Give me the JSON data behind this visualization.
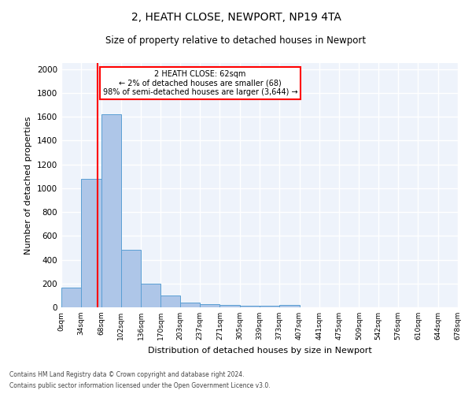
{
  "title": "2, HEATH CLOSE, NEWPORT, NP19 4TA",
  "subtitle": "Size of property relative to detached houses in Newport",
  "xlabel": "Distribution of detached houses by size in Newport",
  "ylabel": "Number of detached properties",
  "bar_color": "#aec6e8",
  "bar_edge_color": "#5a9fd4",
  "bg_color": "#eef3fb",
  "grid_color": "#ffffff",
  "red_line_x": 62,
  "annotation_box_text": "2 HEATH CLOSE: 62sqm\n← 2% of detached houses are smaller (68)\n98% of semi-detached houses are larger (3,644) →",
  "bins": [
    0,
    34,
    68,
    102,
    136,
    170,
    203,
    237,
    271,
    305,
    339,
    373,
    407,
    441,
    475,
    509,
    542,
    576,
    610,
    644,
    678
  ],
  "counts": [
    165,
    1080,
    1620,
    480,
    200,
    100,
    40,
    28,
    18,
    15,
    12,
    18,
    0,
    0,
    0,
    0,
    0,
    0,
    0,
    0
  ],
  "tick_labels": [
    "0sqm",
    "34sqm",
    "68sqm",
    "102sqm",
    "136sqm",
    "170sqm",
    "203sqm",
    "237sqm",
    "271sqm",
    "305sqm",
    "339sqm",
    "373sqm",
    "407sqm",
    "441sqm",
    "475sqm",
    "509sqm",
    "542sqm",
    "576sqm",
    "610sqm",
    "644sqm",
    "678sqm"
  ],
  "ylim": [
    0,
    2050
  ],
  "footnote1": "Contains HM Land Registry data © Crown copyright and database right 2024.",
  "footnote2": "Contains public sector information licensed under the Open Government Licence v3.0."
}
